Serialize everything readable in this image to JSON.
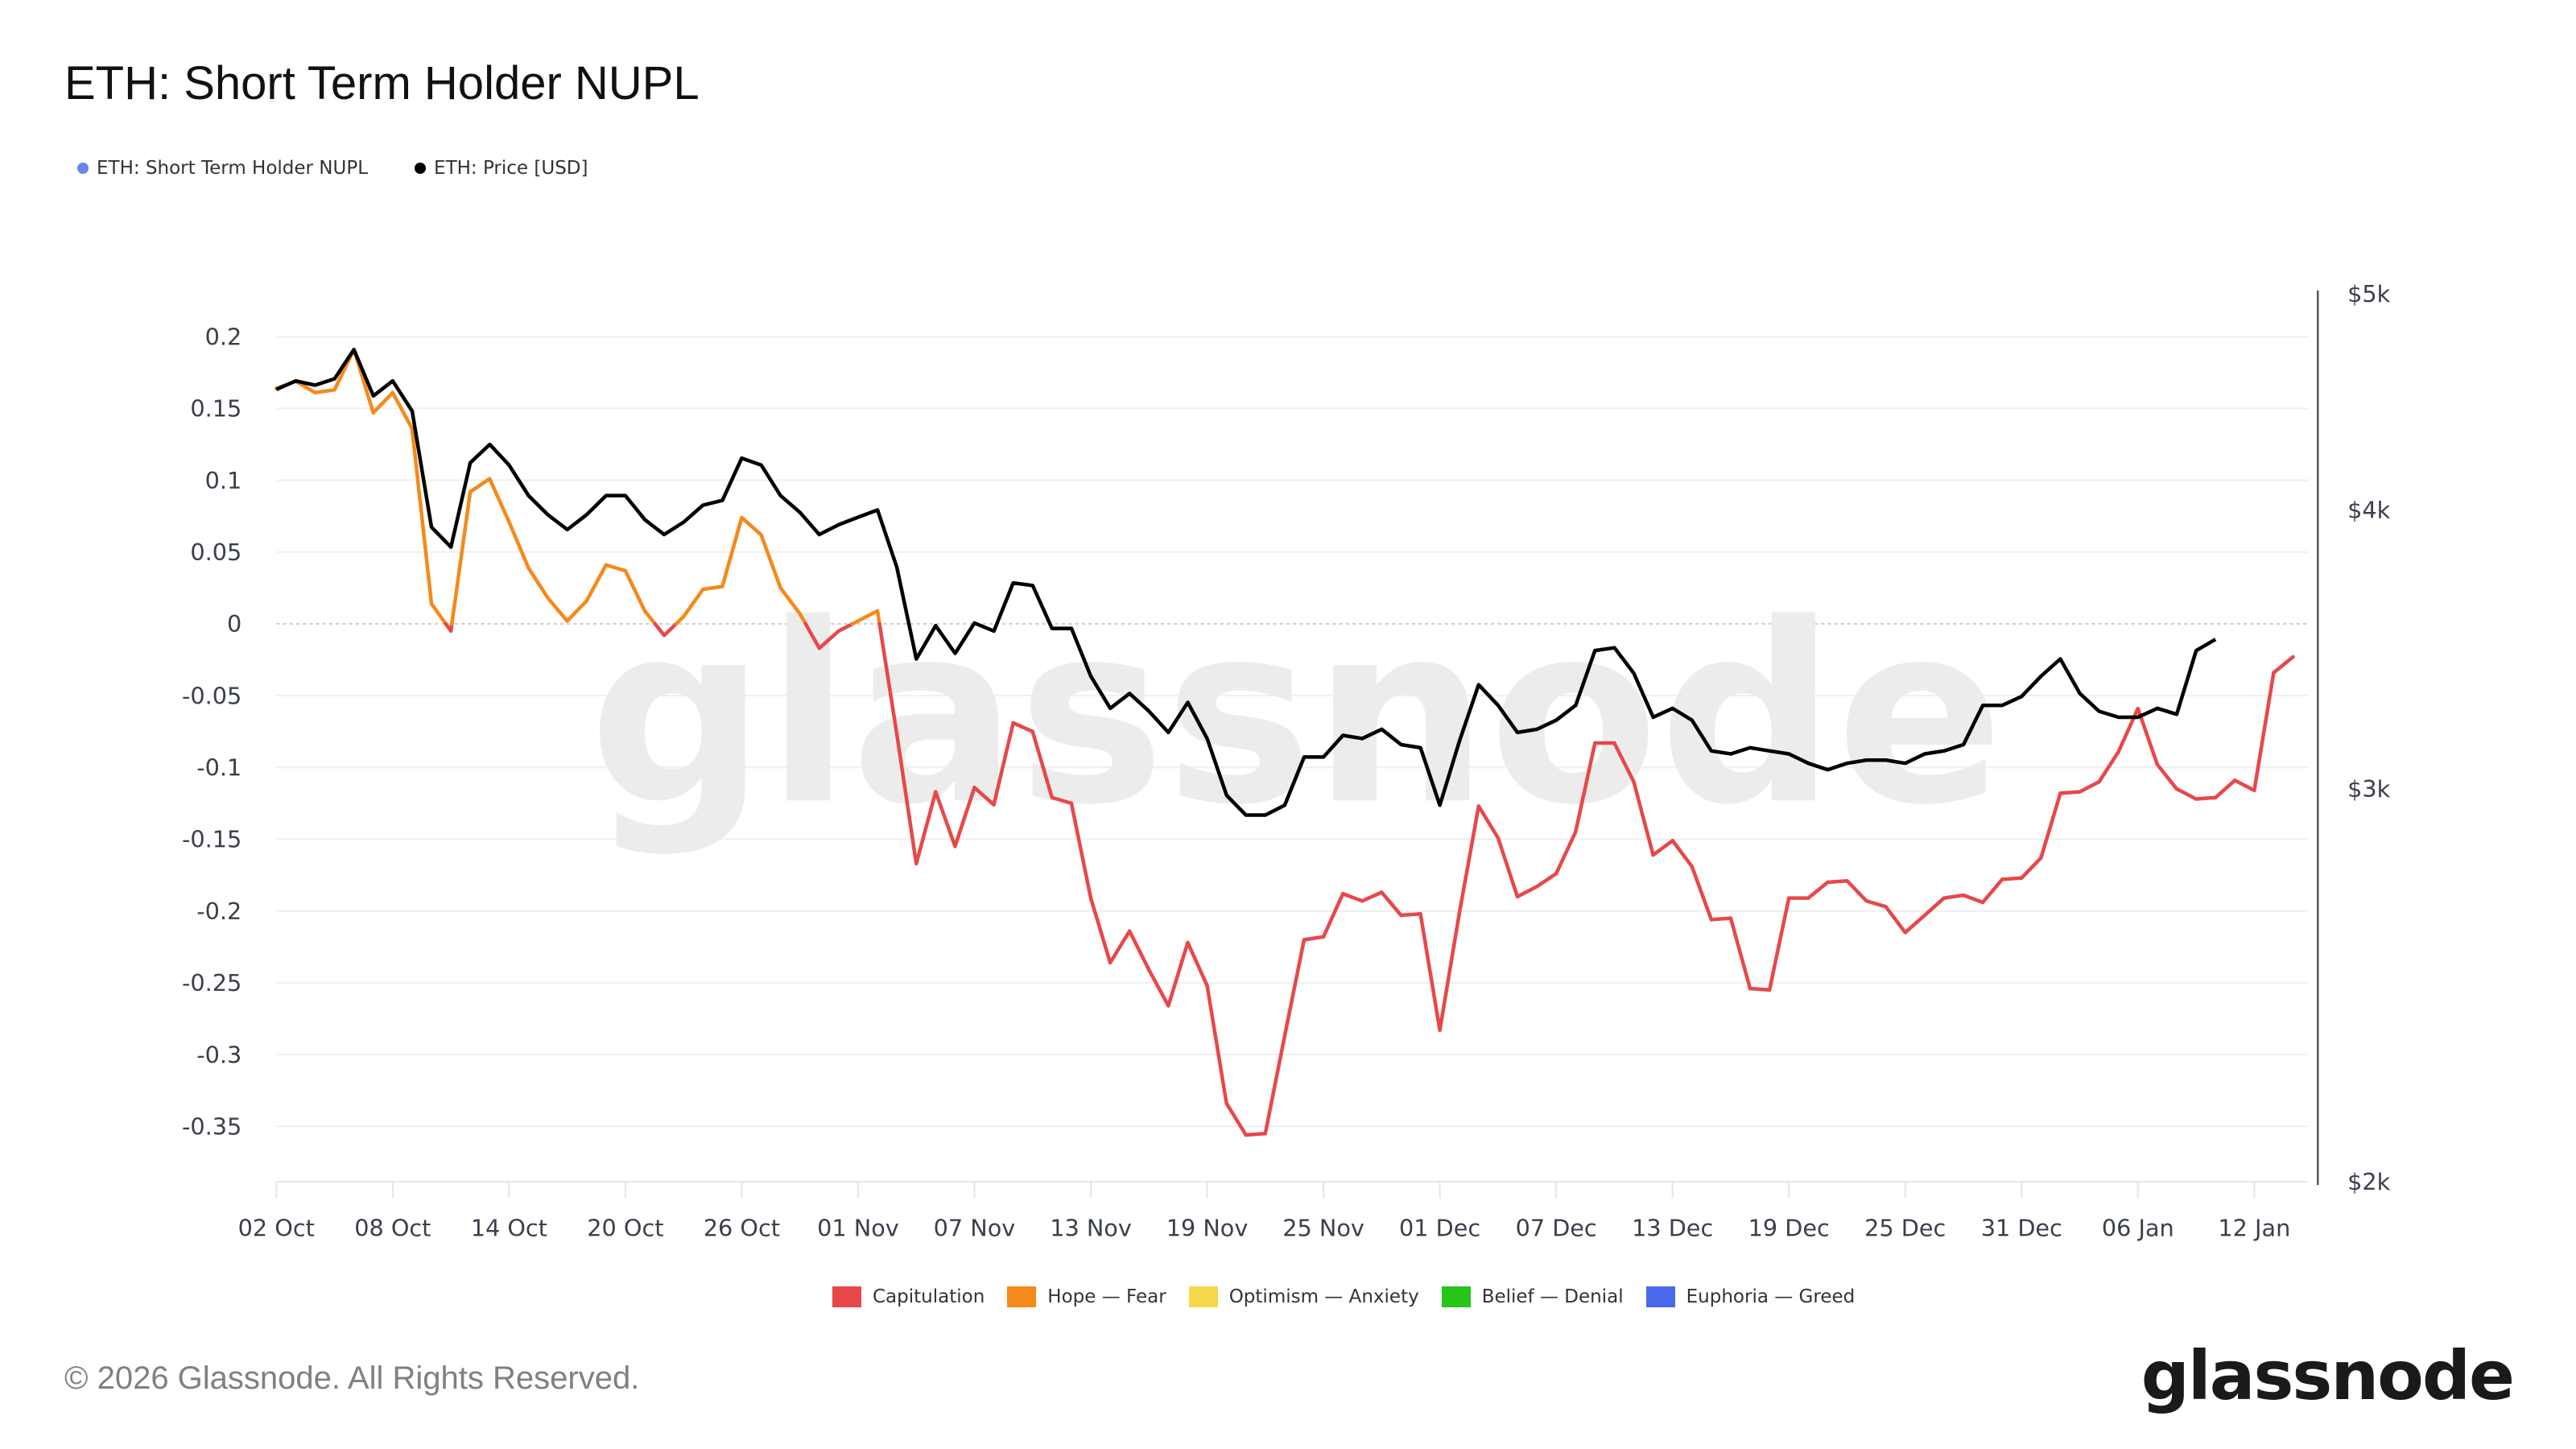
{
  "header": {
    "title": "ETH: Short Term Holder NUPL",
    "legend": [
      {
        "label": "ETH: Short Term Holder NUPL",
        "color": "#6b84e6"
      },
      {
        "label": "ETH: Price [USD]",
        "color": "#000000"
      }
    ]
  },
  "zones_legend": [
    {
      "label": "Capitulation",
      "color": "#e8474a"
    },
    {
      "label": "Hope — Fear",
      "color": "#f5891a"
    },
    {
      "label": "Optimism — Anxiety",
      "color": "#f5d84a"
    },
    {
      "label": "Belief — Denial",
      "color": "#27c419"
    },
    {
      "label": "Euphoria — Greed",
      "color": "#4a68ea"
    }
  ],
  "footer": {
    "copyright": "© 2026 Glassnode. All Rights Reserved.",
    "logo": "glassnode",
    "watermark": "glassnode"
  },
  "chart_data": {
    "type": "line",
    "title": "ETH: Short Term Holder NUPL",
    "xlabel": "",
    "ylabel": "",
    "x_ticks": [
      "02 Oct",
      "08 Oct",
      "14 Oct",
      "20 Oct",
      "26 Oct",
      "01 Nov",
      "07 Nov",
      "13 Nov",
      "19 Nov",
      "25 Nov",
      "01 Dec",
      "07 Dec",
      "13 Dec",
      "19 Dec",
      "25 Dec",
      "31 Dec",
      "06 Jan",
      "12 Jan"
    ],
    "y_left_ticks": [
      "0.2",
      "0.15",
      "0.1",
      "0.05",
      "0",
      "-0.05",
      "-0.1",
      "-0.15",
      "-0.2",
      "-0.25",
      "-0.3",
      "-0.35"
    ],
    "y_right_ticks": [
      "$5k",
      "$4k",
      "$3k",
      "$2k"
    ],
    "y_left_range": [
      -0.39,
      0.2
    ],
    "y_right_range": [
      2000,
      5000
    ],
    "y_right_scale": "log",
    "grid": true,
    "start_date": "02 Oct",
    "series": [
      {
        "name": "ETH: Short Term Holder NUPL",
        "axis": "left",
        "colored_by_zone": true,
        "values": [
          0.164,
          0.169,
          0.161,
          0.163,
          0.191,
          0.147,
          0.161,
          0.136,
          0.014,
          -0.005,
          0.092,
          0.101,
          0.071,
          0.039,
          0.018,
          0.002,
          0.016,
          0.041,
          0.037,
          0.009,
          -0.008,
          0.005,
          0.024,
          0.026,
          0.074,
          0.062,
          0.025,
          0.007,
          -0.017,
          -0.005,
          0.002,
          0.009,
          -0.077,
          -0.167,
          -0.117,
          -0.155,
          -0.114,
          -0.126,
          -0.069,
          -0.075,
          -0.121,
          -0.125,
          -0.191,
          -0.236,
          -0.214,
          -0.241,
          -0.266,
          -0.222,
          -0.252,
          -0.334,
          -0.356,
          -0.355,
          -0.287,
          -0.22,
          -0.218,
          -0.188,
          -0.193,
          -0.187,
          -0.203,
          -0.202,
          -0.283,
          -0.202,
          -0.127,
          -0.149,
          -0.19,
          -0.183,
          -0.174,
          -0.145,
          -0.083,
          -0.083,
          -0.11,
          -0.161,
          -0.151,
          -0.169,
          -0.206,
          -0.205,
          -0.254,
          -0.255,
          -0.191,
          -0.191,
          -0.18,
          -0.179,
          -0.193,
          -0.197,
          -0.215,
          -0.203,
          -0.191,
          -0.189,
          -0.194,
          -0.178,
          -0.177,
          -0.163,
          -0.118,
          -0.117,
          -0.11,
          -0.089,
          -0.059,
          -0.098,
          -0.115,
          -0.122,
          -0.121,
          -0.109,
          -0.116,
          -0.034,
          -0.023
        ]
      },
      {
        "name": "ETH: Price [USD]",
        "axis": "right",
        "color": "#000000",
        "values": [
          4530,
          4570,
          4550,
          4580,
          4720,
          4500,
          4570,
          4430,
          3930,
          3850,
          4200,
          4280,
          4190,
          4060,
          3980,
          3920,
          3980,
          4060,
          4060,
          3960,
          3900,
          3950,
          4020,
          4040,
          4220,
          4190,
          4060,
          3990,
          3900,
          3940,
          3970,
          4000,
          3770,
          3430,
          3550,
          3450,
          3560,
          3530,
          3710,
          3700,
          3540,
          3540,
          3370,
          3260,
          3310,
          3250,
          3180,
          3280,
          3160,
          2980,
          2920,
          2920,
          2950,
          3100,
          3100,
          3170,
          3160,
          3190,
          3140,
          3130,
          2950,
          3150,
          3340,
          3270,
          3180,
          3190,
          3220,
          3270,
          3460,
          3470,
          3380,
          3230,
          3260,
          3220,
          3120,
          3110,
          3130,
          3120,
          3110,
          3080,
          3060,
          3080,
          3090,
          3090,
          3080,
          3110,
          3120,
          3140,
          3270,
          3270,
          3300,
          3370,
          3430,
          3310,
          3250,
          3230,
          3230,
          3260,
          3240,
          3460,
          3500
        ]
      }
    ],
    "zone_thresholds": {
      "capitulation_below": 0,
      "hope_fear": [
        0,
        0.25
      ],
      "optimism_anxiety": [
        0.25,
        0.5
      ],
      "belief_denial": [
        0.5,
        0.75
      ],
      "euphoria_greed_above": 0.75
    }
  }
}
